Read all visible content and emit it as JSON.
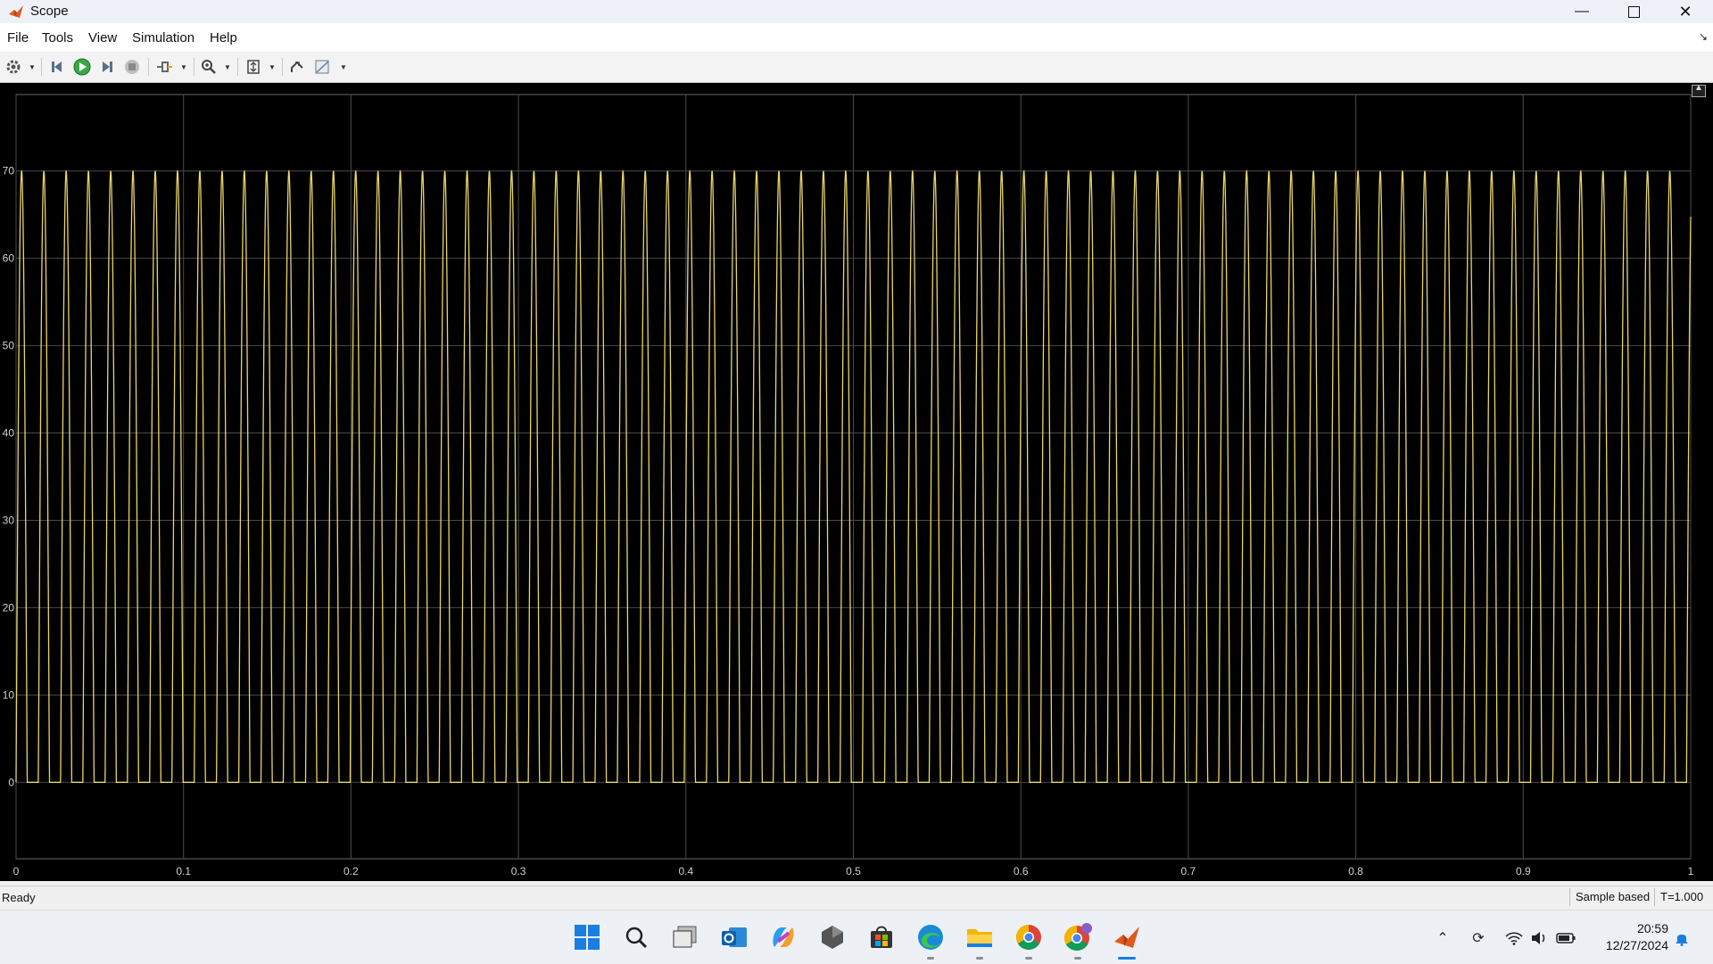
{
  "window": {
    "title": "Scope",
    "accent": "#c0392b"
  },
  "menu": {
    "items": [
      "File",
      "Tools",
      "View",
      "Simulation",
      "Help"
    ]
  },
  "toolbar": {
    "buttons": [
      "settings-icon",
      "step-back-icon",
      "run-icon",
      "step-forward-icon",
      "stop-icon",
      "highlight-signal-icon",
      "zoom-in-icon",
      "scale-axes-icon",
      "restore-view-icon",
      "cursor-measure-icon"
    ]
  },
  "chart_data": {
    "type": "line",
    "title": "",
    "xlabel": "",
    "ylabel": "",
    "xlim": [
      0,
      1
    ],
    "ylim": [
      -8.75,
      78.75
    ],
    "x_ticks": [
      "0",
      "0.1",
      "0.2",
      "0.3",
      "0.4",
      "0.5",
      "0.6",
      "0.7",
      "0.8",
      "0.9",
      "1"
    ],
    "y_ticks": [
      "0",
      "10",
      "20",
      "30",
      "40",
      "50",
      "60",
      "70"
    ],
    "grid": true,
    "background": "#000000",
    "series": [
      {
        "color": "#e8d568",
        "waveform": "rectified-sine",
        "period": 0.0133,
        "amplitude_max": 70,
        "amplitude_min": 0,
        "pulse_fraction": 0.5
      }
    ]
  },
  "status": {
    "text": "Ready",
    "mode": "Sample based",
    "time": "T=1.000"
  },
  "taskbar": {
    "apps": [
      "windows-start-icon",
      "search-icon",
      "task-view-icon",
      "outlook-icon",
      "copilot-icon",
      "app-icon",
      "store-icon",
      "edge-icon",
      "file-explorer-icon",
      "chrome-icon",
      "chrome-profile-icon",
      "matlab-icon"
    ],
    "time": "20:59",
    "date": "12/27/2024"
  }
}
